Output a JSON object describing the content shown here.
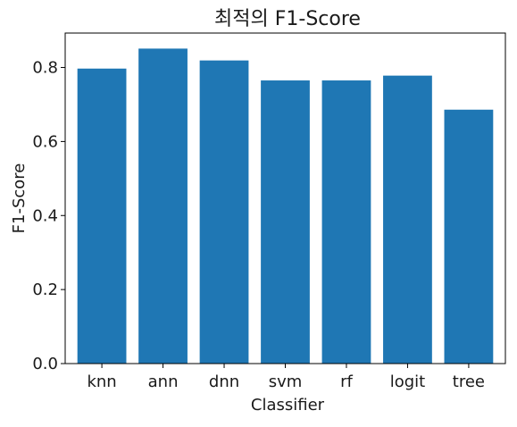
{
  "chart_data": {
    "type": "bar",
    "title": "최적의 F1-Score",
    "xlabel": "Classifier",
    "ylabel": "F1-Score",
    "categories": [
      "knn",
      "ann",
      "dnn",
      "svm",
      "rf",
      "logit",
      "tree"
    ],
    "values": [
      0.797,
      0.851,
      0.819,
      0.765,
      0.765,
      0.778,
      0.686
    ],
    "ylim": [
      0,
      0.893
    ],
    "yticks": [
      "0.0",
      "0.2",
      "0.4",
      "0.6",
      "0.8"
    ],
    "bar_color": "#1f77b4",
    "grid": false
  }
}
